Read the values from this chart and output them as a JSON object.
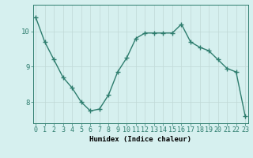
{
  "x": [
    0,
    1,
    2,
    3,
    4,
    5,
    6,
    7,
    8,
    9,
    10,
    11,
    12,
    13,
    14,
    15,
    16,
    17,
    18,
    19,
    20,
    21,
    22,
    23
  ],
  "y": [
    10.4,
    9.7,
    9.2,
    8.7,
    8.4,
    8.0,
    7.75,
    7.8,
    8.2,
    8.85,
    9.25,
    9.8,
    9.95,
    9.95,
    9.95,
    9.95,
    10.2,
    9.7,
    9.55,
    9.45,
    9.2,
    8.95,
    8.85,
    7.6
  ],
  "line_color": "#2e7d6e",
  "marker": "+",
  "marker_size": 4,
  "marker_linewidth": 1.0,
  "line_width": 1.0,
  "xlabel": "Humidex (Indice chaleur)",
  "bg_color": "#d6f0ef",
  "grid_color_major": "#c0d8d6",
  "grid_color_minor": "#cce6e4",
  "yticks": [
    8,
    9,
    10
  ],
  "xticks": [
    0,
    1,
    2,
    3,
    4,
    5,
    6,
    7,
    8,
    9,
    10,
    11,
    12,
    13,
    14,
    15,
    16,
    17,
    18,
    19,
    20,
    21,
    22,
    23
  ],
  "ylim": [
    7.4,
    10.75
  ],
  "xlim": [
    -0.3,
    23.3
  ],
  "tick_fontsize": 6.0,
  "xlabel_fontsize": 6.5,
  "ytick_fontsize": 6.5
}
